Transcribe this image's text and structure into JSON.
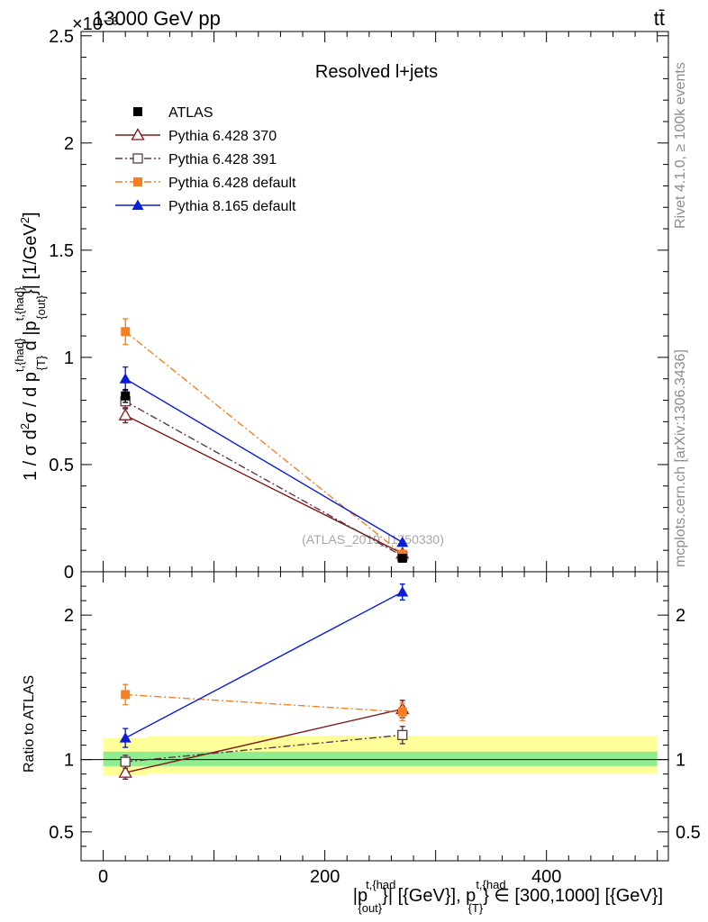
{
  "header": {
    "energy_label": "13000 GeV pp",
    "process_label": "tt̄",
    "y_exponent": "×10⁻³",
    "analysis_title": "Resolved l+jets",
    "watermark": "(ATLAS_2019_I1750330)"
  },
  "side_labels": {
    "rivet": "Rivet 4.1.0, ≥ 100k events",
    "mcplots": "mcplots.cern.ch [arXiv:1306.3436]"
  },
  "chart_data": [
    {
      "type": "line",
      "panel": "main",
      "ylabel": "1 / σ d²σ / d p_T^{t,{had}} d |p_{out}^{t,{had}}| [1/GeV²]",
      "xlim": [
        -20,
        510
      ],
      "ylim": [
        0,
        2.52
      ],
      "y_scale_factor": "1e-3",
      "yticks": [
        0,
        0.5,
        1,
        1.5,
        2,
        2.5
      ],
      "ytick_labels": [
        "0",
        "0.5",
        "1",
        "1.5",
        "2",
        "2.5"
      ],
      "x": [
        20,
        270
      ],
      "series": [
        {
          "name": "ATLAS",
          "marker": "square-filled",
          "color": "#000000",
          "line": "none",
          "values": [
            0.82,
            0.063
          ],
          "errors": [
            0.03,
            0.004
          ]
        },
        {
          "name": "Pythia 6.428 370",
          "marker": "triangle-open",
          "color": "#7f1919",
          "line": "solid",
          "values": [
            0.73,
            0.085
          ],
          "errors": [
            0.035,
            0.006
          ]
        },
        {
          "name": "Pythia 6.428 391",
          "marker": "square-open",
          "color": "#5a3a48",
          "line": "dashdot",
          "values": [
            0.795,
            0.073
          ],
          "errors": [
            0.035,
            0.006
          ]
        },
        {
          "name": "Pythia 6.428 default",
          "marker": "square-filled",
          "color": "#f58024",
          "line": "dashdot",
          "values": [
            1.12,
            0.082
          ],
          "errors": [
            0.06,
            0.006
          ]
        },
        {
          "name": "Pythia 8.165 default",
          "marker": "triangle-filled",
          "color": "#0a1ed8",
          "line": "solid",
          "values": [
            0.9,
            0.137
          ],
          "errors": [
            0.055,
            0.008
          ]
        }
      ]
    },
    {
      "type": "line",
      "panel": "ratio",
      "ylabel": "Ratio to ATLAS",
      "xlabel": "|p_{out}^{t,{had}}| [{GeV}], p_T^{t,{had}} ∈ [300,1000] [{GeV}]",
      "xlim": [
        -20,
        510
      ],
      "ylim": [
        0.3,
        2.3
      ],
      "yticks": [
        0.5,
        1,
        2
      ],
      "ytick_labels": [
        "0.5",
        "1",
        "2"
      ],
      "xticks": [
        0,
        200,
        400
      ],
      "xtick_labels": [
        "0",
        "200",
        "400"
      ],
      "x": [
        20,
        270
      ],
      "bands": {
        "stat_sys": {
          "color": "#ffff99",
          "bins": [
            [
              0,
              40,
              0.89,
              1.15
            ],
            [
              40,
              500,
              0.905,
              1.165
            ]
          ]
        },
        "stat": {
          "color": "#90ee90",
          "bins": [
            [
              0,
              500,
              0.955,
              1.055
            ]
          ]
        }
      },
      "series": [
        {
          "name": "Pythia 6.428 370",
          "values": [
            0.91,
            1.35
          ],
          "errors": [
            0.045,
            0.06
          ]
        },
        {
          "name": "Pythia 6.428 391",
          "values": [
            0.985,
            1.17
          ],
          "errors": [
            0.045,
            0.06
          ]
        },
        {
          "name": "Pythia 6.428 default",
          "values": [
            1.45,
            1.33
          ],
          "errors": [
            0.07,
            0.06
          ]
        },
        {
          "name": "Pythia 8.165 default",
          "values": [
            1.15,
            2.16
          ],
          "errors": [
            0.065,
            0.055
          ]
        }
      ]
    }
  ]
}
